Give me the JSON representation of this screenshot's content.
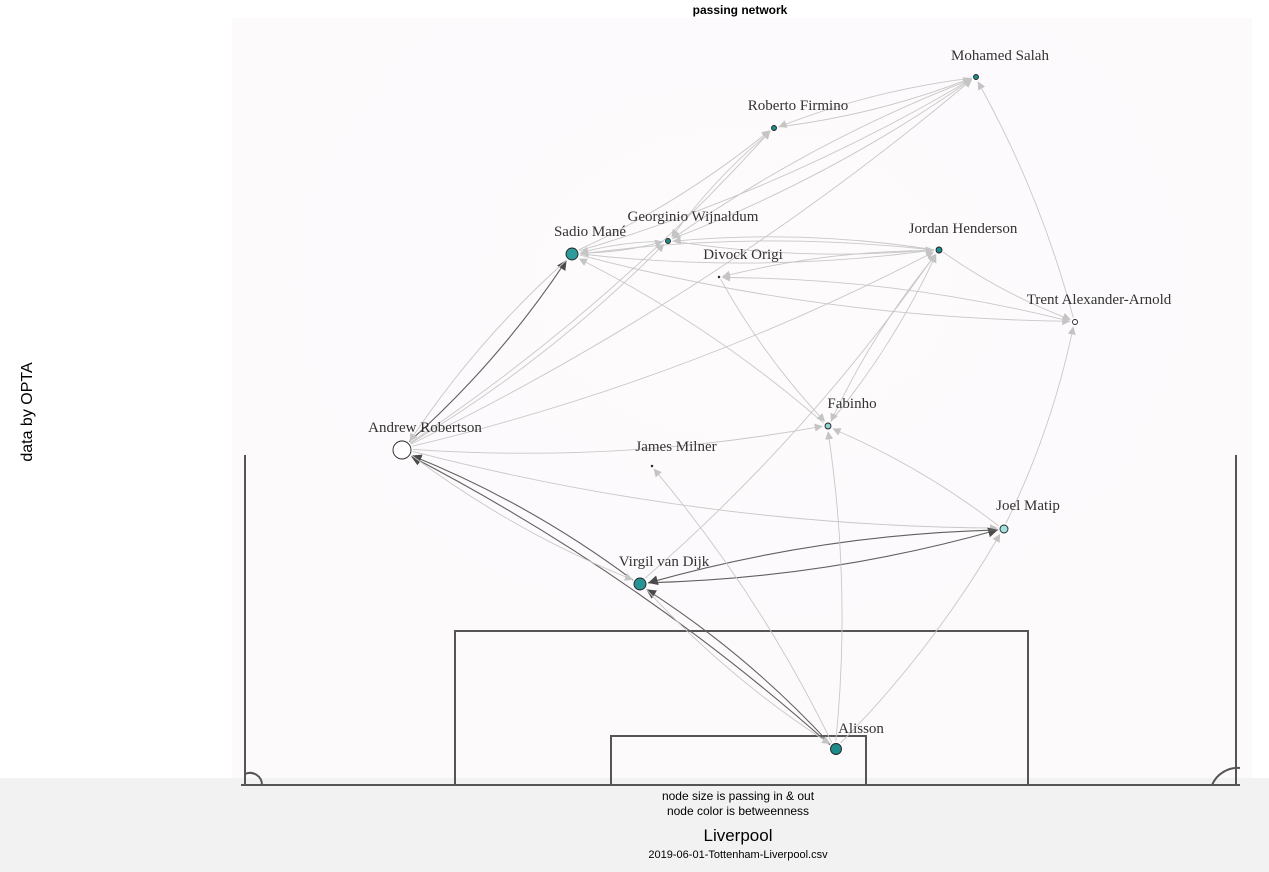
{
  "title": "passing network",
  "ylabel": "data by OPTA",
  "caption_line1": "node size is passing in & out",
  "caption_line2": "node color is betweenness",
  "team": "Liverpool",
  "source_file": "2019-06-01-Tottenham-Liverpool.csv",
  "colors": {
    "node_high": "#1f8a8a",
    "node_low": "#ffffff",
    "edge_light": "#c8c8c8",
    "edge_dark": "#505050",
    "pitch_line": "#444444",
    "footer_bg": "#f2f2f2"
  },
  "players": [
    {
      "id": "salah",
      "name": "Mohamed Salah"
    },
    {
      "id": "firmino",
      "name": "Roberto Firmino"
    },
    {
      "id": "wijnaldum",
      "name": "Georginio Wijnaldum"
    },
    {
      "id": "mane",
      "name": "Sadio Mané"
    },
    {
      "id": "henderson",
      "name": "Jordan Henderson"
    },
    {
      "id": "origi",
      "name": "Divock Origi"
    },
    {
      "id": "taa",
      "name": "Trent Alexander-Arnold"
    },
    {
      "id": "fabinho",
      "name": "Fabinho"
    },
    {
      "id": "robertson",
      "name": "Andrew Robertson"
    },
    {
      "id": "milner",
      "name": "James Milner"
    },
    {
      "id": "matip",
      "name": "Joel Matip"
    },
    {
      "id": "vvd",
      "name": "Virgil van Dijk"
    },
    {
      "id": "alisson",
      "name": "Alisson"
    }
  ],
  "passes": [
    [
      "robertson",
      "mane",
      "dark"
    ],
    [
      "mane",
      "robertson",
      "light"
    ],
    [
      "robertson",
      "wijnaldum",
      "light"
    ],
    [
      "robertson",
      "firmino",
      "light"
    ],
    [
      "robertson",
      "salah",
      "light"
    ],
    [
      "robertson",
      "fabinho",
      "light"
    ],
    [
      "robertson",
      "matip",
      "light"
    ],
    [
      "robertson",
      "henderson",
      "light"
    ],
    [
      "vvd",
      "robertson",
      "dark"
    ],
    [
      "alisson",
      "robertson",
      "dark"
    ],
    [
      "robertson",
      "vvd",
      "light"
    ],
    [
      "vvd",
      "matip",
      "dark"
    ],
    [
      "matip",
      "vvd",
      "dark"
    ],
    [
      "alisson",
      "vvd",
      "dark"
    ],
    [
      "vvd",
      "alisson",
      "light"
    ],
    [
      "alisson",
      "matip",
      "light"
    ],
    [
      "alisson",
      "fabinho",
      "light"
    ],
    [
      "alisson",
      "milner",
      "light"
    ],
    [
      "matip",
      "taa",
      "light"
    ],
    [
      "taa",
      "salah",
      "light"
    ],
    [
      "henderson",
      "taa",
      "light"
    ],
    [
      "mane",
      "taa",
      "light"
    ],
    [
      "henderson",
      "mane",
      "light"
    ],
    [
      "mane",
      "henderson",
      "light"
    ],
    [
      "wijnaldum",
      "henderson",
      "light"
    ],
    [
      "henderson",
      "wijnaldum",
      "light"
    ],
    [
      "salah",
      "firmino",
      "light"
    ],
    [
      "firmino",
      "salah",
      "light"
    ],
    [
      "wijnaldum",
      "salah",
      "light"
    ],
    [
      "salah",
      "wijnaldum",
      "light"
    ],
    [
      "mane",
      "salah",
      "light"
    ],
    [
      "mane",
      "firmino",
      "light"
    ],
    [
      "firmino",
      "wijnaldum",
      "light"
    ],
    [
      "henderson",
      "origi",
      "light"
    ],
    [
      "taa",
      "origi",
      "light"
    ],
    [
      "fabinho",
      "henderson",
      "light"
    ],
    [
      "henderson",
      "fabinho",
      "light"
    ],
    [
      "matip",
      "fabinho",
      "light"
    ],
    [
      "fabinho",
      "mane",
      "light"
    ],
    [
      "wijnaldum",
      "mane",
      "light"
    ],
    [
      "mane",
      "wijnaldum",
      "light"
    ],
    [
      "vvd",
      "henderson",
      "light"
    ],
    [
      "origi",
      "fabinho",
      "light"
    ]
  ]
}
